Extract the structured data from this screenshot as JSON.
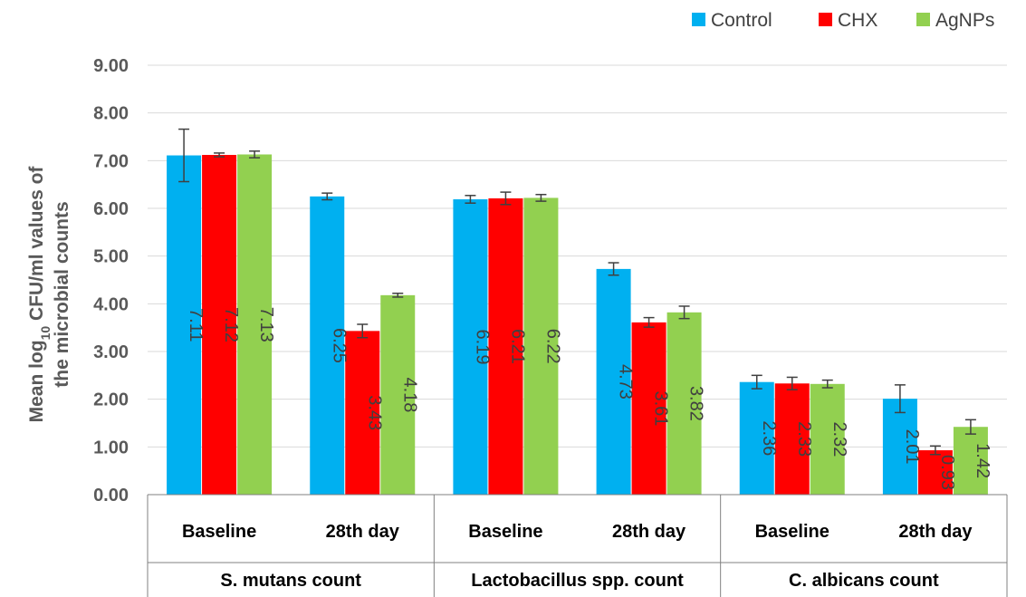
{
  "chart_data": {
    "type": "bar",
    "ylabel_line1": "Mean log",
    "ylabel_sub": "10",
    "ylabel_line1_rest": " CFU/ml values of",
    "ylabel_line2": "the microbial counts",
    "ylim": [
      0,
      9
    ],
    "yticks": [
      "0.00",
      "1.00",
      "2.00",
      "3.00",
      "4.00",
      "5.00",
      "6.00",
      "7.00",
      "8.00",
      "9.00"
    ],
    "grid": true,
    "legend_position": "top-right",
    "groups": [
      {
        "label": "S. mutans count",
        "categories": [
          "Baseline",
          "28th day"
        ]
      },
      {
        "label": "Lactobacillus spp. count",
        "categories": [
          "Baseline",
          "28th day"
        ]
      },
      {
        "label": "C. albicans count",
        "categories": [
          "Baseline",
          "28th day"
        ]
      }
    ],
    "series": [
      {
        "name": "Control",
        "color": "#00B0F0",
        "values": [
          7.11,
          6.25,
          6.19,
          4.73,
          2.36,
          2.01
        ],
        "labels": [
          "7.11",
          "6.25",
          "6.19",
          "4.73",
          "2.36",
          "2.01"
        ],
        "errors": [
          0.55,
          0.07,
          0.08,
          0.13,
          0.14,
          0.29
        ]
      },
      {
        "name": "CHX",
        "color": "#FF0000",
        "values": [
          7.12,
          3.43,
          6.21,
          3.61,
          2.33,
          0.93
        ],
        "labels": [
          "7.12",
          "3.43",
          "6.21",
          "3.61",
          "2.33",
          "0.93"
        ],
        "errors": [
          0.04,
          0.14,
          0.13,
          0.1,
          0.13,
          0.09
        ]
      },
      {
        "name": "AgNPs",
        "color": "#92D050",
        "values": [
          7.13,
          4.18,
          6.22,
          3.82,
          2.32,
          1.42
        ],
        "labels": [
          "7.13",
          "4.18",
          "6.22",
          "3.82",
          "2.32",
          "1.42"
        ],
        "errors": [
          0.07,
          0.04,
          0.07,
          0.13,
          0.08,
          0.15
        ]
      }
    ]
  }
}
